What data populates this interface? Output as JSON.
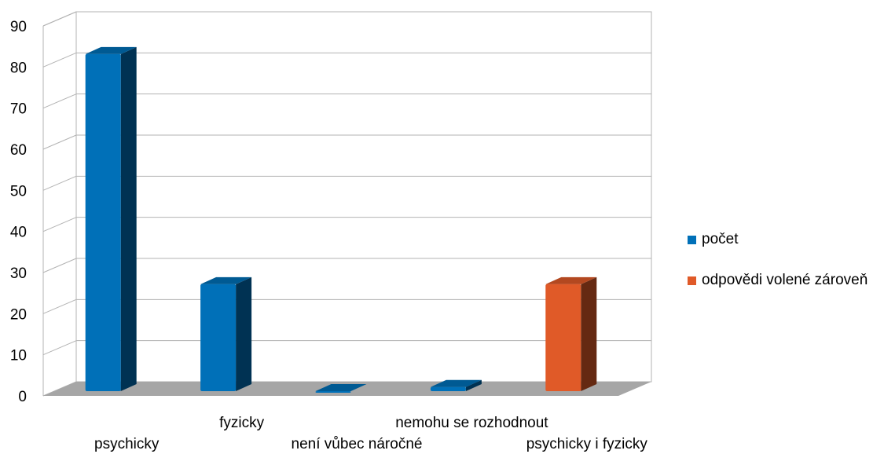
{
  "chart_data": {
    "type": "bar",
    "categories": [
      "psychicky",
      "fyzicky",
      "není vůbec náročné",
      "nemohu se rozhodnout",
      "psychicky i fyzicky"
    ],
    "series": [
      {
        "name": "počet",
        "values": [
          82,
          26,
          0,
          1,
          null
        ],
        "color": "#0070b8"
      },
      {
        "name": "odpovědi volené zároveň",
        "values": [
          null,
          null,
          null,
          null,
          26
        ],
        "color": "#e05a28"
      }
    ],
    "yticks": [
      0,
      10,
      20,
      30,
      40,
      50,
      60,
      70,
      80,
      90
    ],
    "ylim": [
      0,
      90
    ],
    "grid": true,
    "legend_position": "right",
    "style": "3d-bar"
  }
}
